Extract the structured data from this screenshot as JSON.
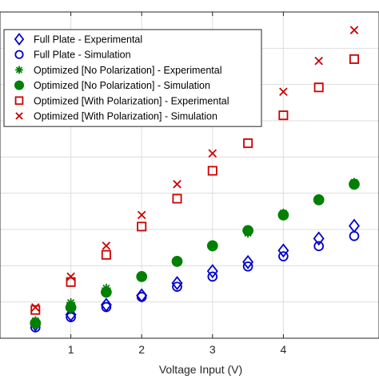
{
  "chart_data": {
    "type": "scatter",
    "xlabel": "Voltage Input (V)",
    "ylabel": "",
    "title": "",
    "xlim": [
      0.0,
      5.35
    ],
    "ylim": [
      0.0,
      9.0
    ],
    "x_ticks": [
      1,
      2,
      3,
      4
    ],
    "grid": true,
    "legend_position": "top-left",
    "series": [
      {
        "name": "Full Plate - Experimental",
        "marker": "diamond",
        "color": "#0000cc",
        "x": [
          0.5,
          1.0,
          1.5,
          2.0,
          2.5,
          3.0,
          3.5,
          4.0,
          4.5,
          5.0
        ],
        "y": [
          0.38,
          0.65,
          0.92,
          1.18,
          1.52,
          1.85,
          2.1,
          2.42,
          2.75,
          3.1
        ]
      },
      {
        "name": "Full Plate - Simulation",
        "marker": "circle-open",
        "color": "#0000cc",
        "x": [
          0.5,
          1.0,
          1.5,
          2.0,
          2.5,
          3.0,
          3.5,
          4.0,
          4.5,
          5.0
        ],
        "y": [
          0.3,
          0.58,
          0.86,
          1.14,
          1.42,
          1.7,
          1.98,
          2.26,
          2.54,
          2.82
        ]
      },
      {
        "name": "Optimized  [No Polarization] - Experimental",
        "marker": "asterisk",
        "color": "#008000",
        "x": [
          0.5,
          1.0,
          1.5,
          2.0,
          2.5,
          3.0,
          3.5,
          4.0,
          4.5,
          5.0
        ],
        "y": [
          0.48,
          0.98,
          1.38,
          1.72,
          2.1,
          2.52,
          2.9,
          3.45,
          3.85,
          4.3
        ]
      },
      {
        "name": "Optimized  [No Polarization] - Simulation",
        "marker": "circle-filled",
        "color": "#008000",
        "x": [
          0.5,
          1.0,
          1.5,
          2.0,
          2.5,
          3.0,
          3.5,
          4.0,
          4.5,
          5.0
        ],
        "y": [
          0.42,
          0.85,
          1.27,
          1.7,
          2.12,
          2.55,
          2.97,
          3.4,
          3.82,
          4.25
        ]
      },
      {
        "name": "Optimized  [With Polarization] - Experimental",
        "marker": "square-open",
        "color": "#cc0000",
        "x": [
          0.5,
          1.0,
          1.5,
          2.0,
          2.5,
          3.0,
          3.5,
          4.0,
          4.5,
          5.0
        ],
        "y": [
          0.78,
          1.55,
          2.3,
          3.08,
          3.85,
          4.62,
          5.38,
          6.15,
          6.92,
          7.7
        ]
      },
      {
        "name": "Optimized  [With Polarization] - Simulation",
        "marker": "x",
        "color": "#cc0000",
        "x": [
          0.5,
          1.0,
          1.5,
          2.0,
          2.5,
          3.0,
          3.5,
          4.0,
          4.5,
          5.0
        ],
        "y": [
          0.85,
          1.7,
          2.55,
          3.4,
          4.25,
          5.1,
          5.95,
          6.8,
          7.65,
          8.5
        ]
      }
    ]
  }
}
